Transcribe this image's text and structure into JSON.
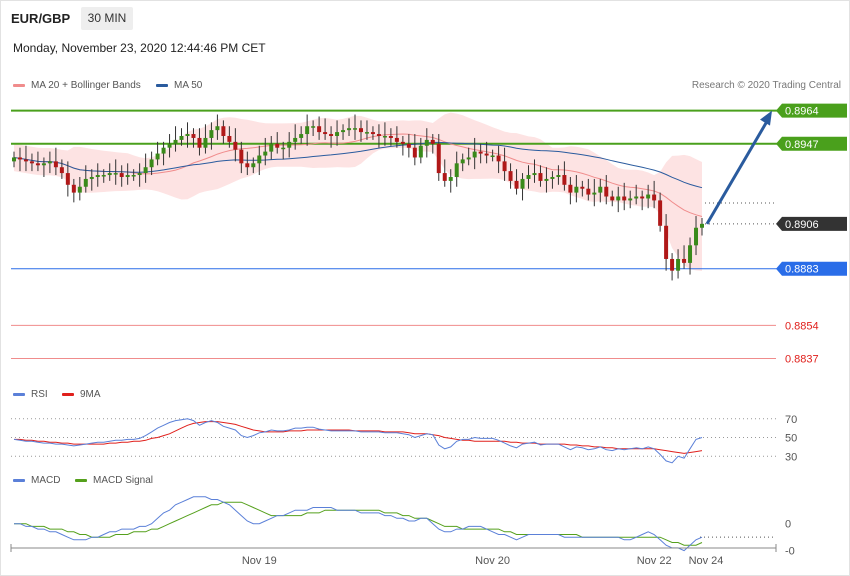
{
  "header": {
    "symbol": "EUR/GBP",
    "timeframe": "30 MIN",
    "datetime": "Monday, November 23, 2020 12:44:46 PM CET"
  },
  "credit": "Research © 2020 Trading Central",
  "legends": {
    "main": [
      {
        "label": "MA 20 + Bollinger Bands",
        "color": "#f08c8c"
      },
      {
        "label": "MA 50",
        "color": "#2a5b9e"
      }
    ],
    "rsi": [
      {
        "label": "RSI",
        "color": "#5b80d8"
      },
      {
        "label": "9MA",
        "color": "#e0201c"
      }
    ],
    "macd": [
      {
        "label": "MACD",
        "color": "#5b80d8"
      },
      {
        "label": "MACD Signal",
        "color": "#55a01c"
      }
    ]
  },
  "colors": {
    "resistance": "#4aa01c",
    "pivot": "#2a6de8",
    "support": "#f08c8c",
    "support_text": "#e0201c",
    "current": "#333333",
    "bull": "#3a8a1a",
    "bear": "#b01818",
    "bands": "#fde3e3",
    "arrow": "#2a5b9e"
  },
  "chart_data": {
    "type": "candlestick",
    "ylim": [
      0.8826,
      0.8972
    ],
    "x_ticks": [
      "Nov 19",
      "Nov 20",
      "Nov 22",
      "Nov 24"
    ],
    "levels": [
      {
        "value": 0.8964,
        "label": "0.8964",
        "kind": "resistance"
      },
      {
        "value": 0.8947,
        "label": "0.8947",
        "kind": "resistance"
      },
      {
        "value": 0.8906,
        "label": "0.8906",
        "kind": "current"
      },
      {
        "value": 0.8883,
        "label": "0.8883",
        "kind": "pivot"
      },
      {
        "value": 0.8854,
        "label": "0.8854",
        "kind": "support"
      },
      {
        "value": 0.8837,
        "label": "0.8837",
        "kind": "support"
      }
    ],
    "target_arrow": {
      "from": 0.8906,
      "to": 0.8964
    },
    "close": [
      0.894,
      0.8939,
      0.8938,
      0.8937,
      0.8936,
      0.8937,
      0.8938,
      0.8935,
      0.8932,
      0.8926,
      0.8922,
      0.8925,
      0.8929,
      0.893,
      0.8931,
      0.8931,
      0.8932,
      0.8932,
      0.893,
      0.8931,
      0.8931,
      0.8932,
      0.8935,
      0.8939,
      0.8942,
      0.8945,
      0.8947,
      0.8949,
      0.8951,
      0.8952,
      0.895,
      0.8945,
      0.895,
      0.8954,
      0.8956,
      0.8951,
      0.8948,
      0.8944,
      0.8937,
      0.8935,
      0.8937,
      0.8941,
      0.8943,
      0.8947,
      0.8945,
      0.8945,
      0.8948,
      0.895,
      0.8952,
      0.8956,
      0.8956,
      0.8953,
      0.8952,
      0.8951,
      0.8953,
      0.8954,
      0.8955,
      0.8955,
      0.8953,
      0.8953,
      0.8952,
      0.8951,
      0.8951,
      0.895,
      0.8948,
      0.8947,
      0.8945,
      0.894,
      0.8946,
      0.8949,
      0.8947,
      0.8932,
      0.8928,
      0.893,
      0.8937,
      0.8939,
      0.894,
      0.8943,
      0.8942,
      0.8941,
      0.8941,
      0.8938,
      0.8933,
      0.8928,
      0.8924,
      0.8929,
      0.8931,
      0.8932,
      0.8928,
      0.8929,
      0.893,
      0.8931,
      0.8926,
      0.8922,
      0.8925,
      0.8924,
      0.8921,
      0.8922,
      0.8925,
      0.892,
      0.8918,
      0.892,
      0.8918,
      0.8919,
      0.892,
      0.8919,
      0.8921,
      0.8918,
      0.8905,
      0.8888,
      0.8882,
      0.8888,
      0.8886,
      0.8895,
      0.8904,
      0.8906
    ],
    "rsi": {
      "ylim": [
        10,
        90
      ],
      "ticks": [
        70,
        50,
        30
      ],
      "rsi": [
        48,
        47,
        46,
        46,
        45,
        44,
        44,
        43,
        43,
        42,
        41,
        42,
        43,
        44,
        45,
        45,
        46,
        47,
        47,
        48,
        48,
        49,
        52,
        56,
        60,
        63,
        66,
        68,
        69,
        70,
        68,
        63,
        66,
        68,
        66,
        62,
        60,
        58,
        52,
        50,
        52,
        55,
        56,
        58,
        57,
        57,
        58,
        60,
        60,
        61,
        61,
        59,
        58,
        57,
        57,
        57,
        57,
        57,
        56,
        56,
        56,
        56,
        55,
        55,
        55,
        54,
        53,
        50,
        52,
        54,
        53,
        42,
        38,
        40,
        46,
        48,
        48,
        50,
        49,
        49,
        49,
        47,
        44,
        41,
        39,
        43,
        44,
        45,
        42,
        43,
        43,
        43,
        40,
        37,
        40,
        39,
        37,
        38,
        40,
        37,
        36,
        38,
        37,
        38,
        39,
        38,
        40,
        38,
        32,
        25,
        23,
        30,
        28,
        38,
        48,
        50
      ],
      "ma9": [
        48,
        48,
        47,
        47,
        46,
        46,
        45,
        45,
        44,
        44,
        43,
        43,
        43,
        43,
        43,
        43,
        44,
        44,
        45,
        45,
        46,
        46,
        47,
        49,
        50,
        52,
        54,
        57,
        60,
        63,
        65,
        66,
        67,
        67,
        67,
        66,
        65,
        64,
        62,
        60,
        58,
        57,
        56,
        56,
        56,
        56,
        57,
        57,
        57,
        58,
        58,
        58,
        58,
        58,
        58,
        58,
        58,
        57,
        57,
        57,
        57,
        57,
        56,
        56,
        56,
        56,
        55,
        54,
        54,
        54,
        53,
        52,
        50,
        49,
        48,
        47,
        47,
        46,
        46,
        46,
        46,
        46,
        46,
        45,
        45,
        44,
        44,
        44,
        43,
        43,
        43,
        43,
        43,
        42,
        42,
        41,
        41,
        40,
        40,
        39,
        39,
        38,
        38,
        38,
        38,
        38,
        38,
        38,
        37,
        36,
        35,
        34,
        33,
        34,
        35,
        36
      ]
    },
    "macd": {
      "ylim": [
        -0.0012,
        0.0014
      ],
      "ticks": [
        {
          "value": 0,
          "label": "0"
        },
        {
          "value": -0.001,
          "label": "-0"
        }
      ],
      "macd": [
        0.0,
        0.0,
        -0.0001,
        -0.0001,
        -0.0002,
        -0.0002,
        -0.0003,
        -0.0003,
        -0.0004,
        -0.0005,
        -0.0006,
        -0.0006,
        -0.0006,
        -0.0005,
        -0.0005,
        -0.0004,
        -0.0003,
        -0.0003,
        -0.0002,
        -0.0002,
        -0.0002,
        -0.0001,
        -0.0001,
        0.0,
        0.0002,
        0.0004,
        0.0005,
        0.0007,
        0.0008,
        0.0009,
        0.001,
        0.001,
        0.001,
        0.0009,
        0.0009,
        0.0008,
        0.0007,
        0.0005,
        0.0003,
        0.0001,
        0.0,
        0.0,
        0.0001,
        0.0002,
        0.0003,
        0.0003,
        0.0004,
        0.0005,
        0.0005,
        0.0005,
        0.0006,
        0.0006,
        0.0006,
        0.0006,
        0.0005,
        0.0005,
        0.0005,
        0.0005,
        0.0004,
        0.0004,
        0.0004,
        0.0004,
        0.0003,
        0.0003,
        0.0002,
        0.0002,
        0.0001,
        0.0001,
        0.0002,
        0.0002,
        0.0,
        -0.0002,
        -0.0003,
        -0.0003,
        -0.0002,
        -0.0002,
        -0.0001,
        -0.0001,
        -0.0001,
        -0.0002,
        -0.0003,
        -0.0004,
        -0.0004,
        -0.0005,
        -0.0006,
        -0.0005,
        -0.0004,
        -0.0004,
        -0.0004,
        -0.0004,
        -0.0004,
        -0.0004,
        -0.0005,
        -0.0005,
        -0.0005,
        -0.0005,
        -0.0005,
        -0.0005,
        -0.0005,
        -0.0005,
        -0.0005,
        -0.0005,
        -0.0006,
        -0.0006,
        -0.0005,
        -0.0004,
        -0.0003,
        -0.0004,
        -0.0006,
        -0.0008,
        -0.0009,
        -0.0009,
        -0.001,
        -0.0008,
        -0.0006,
        -0.0005
      ],
      "signal": [
        0.0,
        0.0,
        0.0,
        -0.0001,
        -0.0001,
        -0.0001,
        -0.0002,
        -0.0002,
        -0.0002,
        -0.0003,
        -0.0003,
        -0.0004,
        -0.0004,
        -0.0005,
        -0.0005,
        -0.0005,
        -0.0005,
        -0.0004,
        -0.0004,
        -0.0004,
        -0.0003,
        -0.0003,
        -0.0003,
        -0.0002,
        -0.0002,
        -0.0001,
        0.0,
        0.0001,
        0.0002,
        0.0003,
        0.0004,
        0.0005,
        0.0006,
        0.0007,
        0.0007,
        0.0008,
        0.0008,
        0.0008,
        0.0008,
        0.0007,
        0.0006,
        0.0005,
        0.0004,
        0.0003,
        0.0003,
        0.0003,
        0.0003,
        0.0003,
        0.0003,
        0.0004,
        0.0004,
        0.0004,
        0.0005,
        0.0005,
        0.0005,
        0.0005,
        0.0005,
        0.0005,
        0.0005,
        0.0005,
        0.0005,
        0.0005,
        0.0004,
        0.0004,
        0.0004,
        0.0003,
        0.0003,
        0.0002,
        0.0002,
        0.0002,
        0.0001,
        0.0,
        -0.0001,
        -0.0001,
        -0.0001,
        -0.0002,
        -0.0002,
        -0.0002,
        -0.0002,
        -0.0002,
        -0.0002,
        -0.0002,
        -0.0003,
        -0.0003,
        -0.0004,
        -0.0004,
        -0.0004,
        -0.0004,
        -0.0004,
        -0.0004,
        -0.0004,
        -0.0004,
        -0.0004,
        -0.0004,
        -0.0004,
        -0.0005,
        -0.0005,
        -0.0005,
        -0.0005,
        -0.0005,
        -0.0005,
        -0.0005,
        -0.0005,
        -0.0005,
        -0.0005,
        -0.0005,
        -0.0005,
        -0.0005,
        -0.0005,
        -0.0006,
        -0.0007,
        -0.0007,
        -0.0008,
        -0.0008,
        -0.0008,
        -0.0007
      ]
    }
  }
}
